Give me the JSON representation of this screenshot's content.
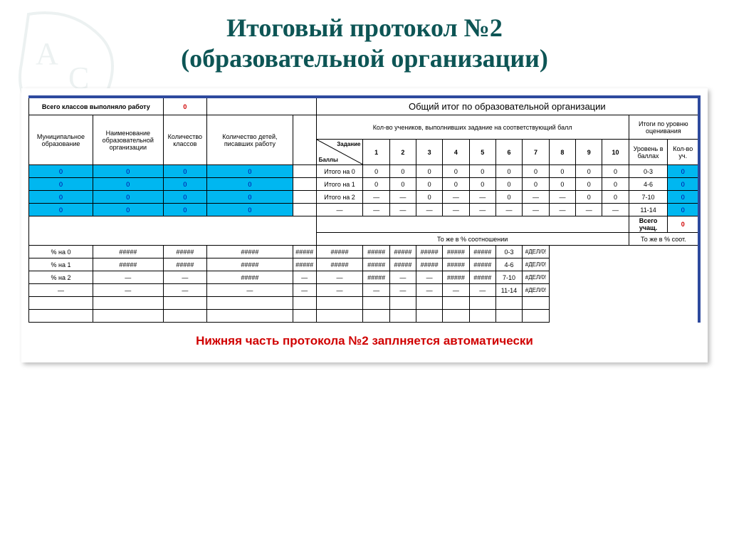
{
  "title_line1": "Итоговый протокол №2",
  "title_line2": "(образовательной организации)",
  "top": {
    "classes_label": "Всего классов выполняло работу",
    "classes_value": "0",
    "overall_title": "Общий итог по образовательной организации"
  },
  "cols": {
    "municipal": "Муниципальное образование",
    "org": "Наименование образовательной организации",
    "class_count": "Количество классов",
    "children_count": "Количество детей, писавших работу",
    "diag_top": "Задание",
    "diag_bot": "Баллы",
    "students_scored": "Кол-во учеников, выполнивших задание на соответствующий балл",
    "level_results": "Итоги по уровню оценивания",
    "level": "Уровень в баллах",
    "count": "Кол-во уч."
  },
  "tasks": [
    "1",
    "2",
    "3",
    "4",
    "5",
    "6",
    "7",
    "8",
    "9",
    "10"
  ],
  "blue_rows": [
    {
      "a": "0",
      "b": "0",
      "c": "0",
      "d": "0",
      "itog": "Итого на 0",
      "vals": [
        "0",
        "0",
        "0",
        "0",
        "0",
        "0",
        "0",
        "0",
        "0",
        "0"
      ],
      "lvl": "0-3",
      "cnt": "0"
    },
    {
      "a": "0",
      "b": "0",
      "c": "0",
      "d": "0",
      "itog": "Итого на 1",
      "vals": [
        "0",
        "0",
        "0",
        "0",
        "0",
        "0",
        "0",
        "0",
        "0",
        "0"
      ],
      "lvl": "4-6",
      "cnt": "0"
    },
    {
      "a": "0",
      "b": "0",
      "c": "0",
      "d": "0",
      "itog": "Итого на 2",
      "vals": [
        "—",
        "—",
        "0",
        "—",
        "—",
        "0",
        "—",
        "—",
        "0",
        "0"
      ],
      "lvl": "7-10",
      "cnt": "0"
    },
    {
      "a": "0",
      "b": "0",
      "c": "0",
      "d": "0",
      "itog": "—",
      "vals": [
        "—",
        "—",
        "—",
        "—",
        "—",
        "—",
        "—",
        "—",
        "—",
        "—"
      ],
      "lvl": "11-14",
      "cnt": "0"
    }
  ],
  "total_students_label": "Всего учащ.",
  "total_students_value": "0",
  "percent_title": "То же в % соотношении",
  "percent_right": "То же в % соот.",
  "pct_rows": [
    {
      "label": "% на 0",
      "vals": [
        "#####",
        "#####",
        "#####",
        "#####",
        "#####",
        "#####",
        "#####",
        "#####",
        "#####",
        "#####"
      ],
      "lvl": "0-3",
      "cnt": "#ДЕЛ/0!"
    },
    {
      "label": "% на 1",
      "vals": [
        "#####",
        "#####",
        "#####",
        "#####",
        "#####",
        "#####",
        "#####",
        "#####",
        "#####",
        "#####"
      ],
      "lvl": "4-6",
      "cnt": "#ДЕЛ/0!"
    },
    {
      "label": "% на 2",
      "vals": [
        "—",
        "—",
        "#####",
        "—",
        "—",
        "#####",
        "—",
        "—",
        "#####",
        "#####"
      ],
      "lvl": "7-10",
      "cnt": "#ДЕЛ/0!"
    },
    {
      "label": "—",
      "vals": [
        "—",
        "—",
        "—",
        "—",
        "—",
        "—",
        "—",
        "—",
        "—",
        "—"
      ],
      "lvl": "11-14",
      "cnt": "#ДЕЛ/0!"
    }
  ],
  "footer": "Нижняя часть протокола №2 заплняется автоматически",
  "colors": {
    "title": "#0d5555",
    "border_accent": "#2e4a9e",
    "blue_row": "#00b7f0",
    "blue_text": "#0000a0",
    "yellow": "#ffff99",
    "pink": "#f2dcdb",
    "red": "#d00000"
  }
}
